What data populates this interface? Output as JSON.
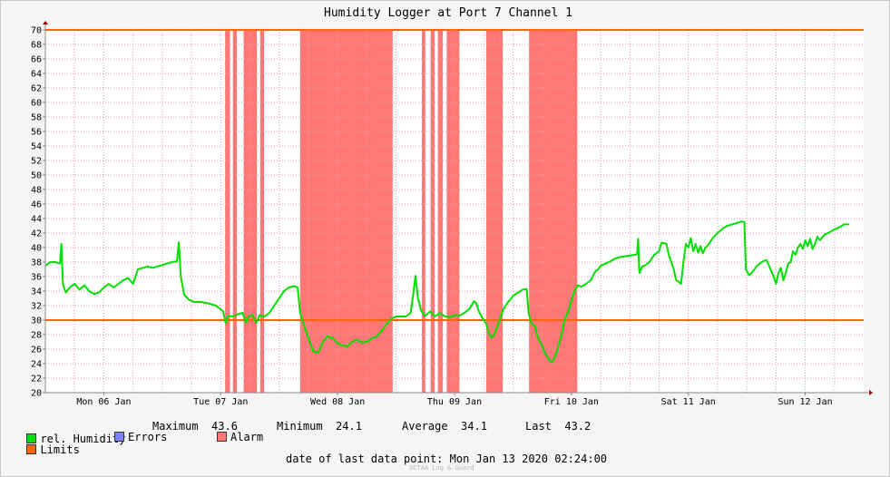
{
  "chart_data": {
    "type": "line",
    "title": "Humidity Logger at Port 7 Channel 1",
    "ylim": [
      20,
      70
    ],
    "yticks": [
      20,
      22,
      24,
      26,
      28,
      30,
      32,
      34,
      36,
      38,
      40,
      42,
      44,
      46,
      48,
      50,
      52,
      54,
      56,
      58,
      60,
      62,
      64,
      66,
      68,
      70
    ],
    "x_range_hours": [
      0,
      168
    ],
    "day_labels": [
      "Mon 06 Jan",
      "Tue 07 Jan",
      "Wed 08 Jan",
      "Thu 09 Jan",
      "Fri 10 Jan",
      "Sat 11 Jan",
      "Sun 12 Jan"
    ],
    "limits": {
      "upper": 70,
      "lower": 30
    },
    "alarm_periods_hours": [
      [
        36.9,
        37.9
      ],
      [
        38.5,
        39.3
      ],
      [
        40.7,
        43.4
      ],
      [
        44.1,
        44.9
      ],
      [
        52.3,
        71.3
      ],
      [
        77.3,
        78.0
      ],
      [
        79.1,
        79.9
      ],
      [
        80.6,
        81.6
      ],
      [
        82.4,
        85.0
      ],
      [
        90.5,
        93.9
      ],
      [
        99.3,
        109.2
      ]
    ],
    "series": [
      {
        "name": "rel. Humidity",
        "color": "#00e000",
        "points": [
          [
            0,
            37.5
          ],
          [
            1,
            38.0
          ],
          [
            2,
            38.0
          ],
          [
            3,
            37.8
          ],
          [
            3.3,
            40.5
          ],
          [
            3.6,
            35.0
          ],
          [
            4.2,
            33.8
          ],
          [
            5,
            34.5
          ],
          [
            6,
            35.0
          ],
          [
            7,
            34.2
          ],
          [
            8,
            34.8
          ],
          [
            9,
            34.0
          ],
          [
            10,
            33.6
          ],
          [
            11,
            33.8
          ],
          [
            12,
            34.5
          ],
          [
            13,
            35.0
          ],
          [
            14,
            34.5
          ],
          [
            15,
            35.0
          ],
          [
            16,
            35.5
          ],
          [
            17,
            35.8
          ],
          [
            18,
            35.0
          ],
          [
            19,
            37.0
          ],
          [
            20,
            37.2
          ],
          [
            21,
            37.4
          ],
          [
            22,
            37.2
          ],
          [
            23,
            37.4
          ],
          [
            24,
            37.6
          ],
          [
            25,
            37.8
          ],
          [
            26,
            38.0
          ],
          [
            27,
            38.1
          ],
          [
            27.4,
            40.7
          ],
          [
            27.8,
            36.0
          ],
          [
            28.5,
            33.5
          ],
          [
            29.5,
            32.8
          ],
          [
            30.5,
            32.5
          ],
          [
            32,
            32.5
          ],
          [
            33.5,
            32.3
          ],
          [
            35,
            32.0
          ],
          [
            36.5,
            31.2
          ],
          [
            37,
            29.6
          ],
          [
            37.5,
            30.6
          ],
          [
            38.5,
            30.5
          ],
          [
            39.5,
            30.8
          ],
          [
            40.5,
            31.0
          ],
          [
            41.2,
            29.6
          ],
          [
            41.8,
            30.6
          ],
          [
            42.5,
            30.7
          ],
          [
            43.3,
            29.6
          ],
          [
            44,
            30.7
          ],
          [
            45,
            30.5
          ],
          [
            46,
            31.0
          ],
          [
            47,
            32.0
          ],
          [
            48,
            33.0
          ],
          [
            49,
            34.0
          ],
          [
            50,
            34.5
          ],
          [
            51,
            34.7
          ],
          [
            51.8,
            34.5
          ],
          [
            52.3,
            31.0
          ],
          [
            53,
            29.5
          ],
          [
            54,
            27.5
          ],
          [
            55,
            25.7
          ],
          [
            56,
            25.5
          ],
          [
            57,
            27.0
          ],
          [
            58,
            27.8
          ],
          [
            59,
            27.5
          ],
          [
            60,
            26.8
          ],
          [
            61,
            26.5
          ],
          [
            62,
            26.4
          ],
          [
            63,
            27.0
          ],
          [
            64,
            27.3
          ],
          [
            65,
            26.9
          ],
          [
            66,
            27.0
          ],
          [
            67,
            27.5
          ],
          [
            68,
            27.7
          ],
          [
            69,
            28.5
          ],
          [
            70,
            29.4
          ],
          [
            71,
            30.2
          ],
          [
            72,
            30.5
          ],
          [
            73,
            30.5
          ],
          [
            74,
            30.5
          ],
          [
            75,
            31.0
          ],
          [
            75.6,
            34.0
          ],
          [
            76,
            36.1
          ],
          [
            76.5,
            33.0
          ],
          [
            77.2,
            31.2
          ],
          [
            78,
            30.6
          ],
          [
            79,
            31.2
          ],
          [
            80,
            30.5
          ],
          [
            81,
            31.0
          ],
          [
            82,
            30.5
          ],
          [
            83,
            30.4
          ],
          [
            84,
            30.7
          ],
          [
            85,
            30.6
          ],
          [
            86,
            31.0
          ],
          [
            87,
            31.5
          ],
          [
            88,
            32.6
          ],
          [
            88.5,
            32.3
          ],
          [
            89,
            31.2
          ],
          [
            89.8,
            30.2
          ],
          [
            90.5,
            29.5
          ],
          [
            91,
            28.3
          ],
          [
            91.5,
            27.6
          ],
          [
            92,
            27.8
          ],
          [
            92.5,
            28.6
          ],
          [
            93,
            29.5
          ],
          [
            93.5,
            30.5
          ],
          [
            94,
            31.5
          ],
          [
            95,
            32.5
          ],
          [
            96,
            33.3
          ],
          [
            97,
            33.8
          ],
          [
            98,
            34.2
          ],
          [
            98.8,
            34.3
          ],
          [
            99.2,
            31.0
          ],
          [
            99.8,
            29.5
          ],
          [
            100.5,
            29.2
          ],
          [
            101,
            27.8
          ],
          [
            101.5,
            27.0
          ],
          [
            102,
            26.5
          ],
          [
            102.5,
            25.5
          ],
          [
            103,
            25.0
          ],
          [
            103.5,
            24.4
          ],
          [
            104,
            24.2
          ],
          [
            104.5,
            24.8
          ],
          [
            105,
            25.7
          ],
          [
            105.5,
            26.8
          ],
          [
            106,
            28.0
          ],
          [
            106.5,
            29.8
          ],
          [
            107,
            30.7
          ],
          [
            107.5,
            31.5
          ],
          [
            108,
            32.8
          ],
          [
            108.7,
            34.1
          ],
          [
            109.3,
            34.8
          ],
          [
            110,
            34.6
          ],
          [
            111,
            35.0
          ],
          [
            112,
            35.5
          ],
          [
            112.5,
            36.2
          ],
          [
            113,
            36.8
          ],
          [
            113.5,
            37.0
          ],
          [
            114,
            37.5
          ],
          [
            115,
            37.8
          ],
          [
            116,
            38.1
          ],
          [
            117,
            38.5
          ],
          [
            118,
            38.7
          ],
          [
            119,
            38.8
          ],
          [
            120,
            38.9
          ],
          [
            121,
            39.0
          ],
          [
            121.5,
            39.1
          ],
          [
            121.7,
            41.2
          ],
          [
            121.9,
            37.0
          ],
          [
            122,
            36.5
          ],
          [
            122.5,
            37.4
          ],
          [
            123,
            37.5
          ],
          [
            124,
            38.0
          ],
          [
            125,
            39.0
          ],
          [
            126,
            39.5
          ],
          [
            126.5,
            40.7
          ],
          [
            127,
            40.6
          ],
          [
            127.5,
            40.5
          ],
          [
            128,
            39.0
          ],
          [
            129,
            37.0
          ],
          [
            129.5,
            35.5
          ],
          [
            130,
            35.3
          ],
          [
            130.5,
            35.0
          ],
          [
            131,
            38.0
          ],
          [
            131.5,
            40.5
          ],
          [
            132,
            40.0
          ],
          [
            132.5,
            41.3
          ],
          [
            133,
            39.5
          ],
          [
            133.5,
            40.5
          ],
          [
            134,
            39.3
          ],
          [
            134.5,
            40.2
          ],
          [
            135,
            39.2
          ],
          [
            135.5,
            40.0
          ],
          [
            136,
            40.3
          ],
          [
            137,
            41.3
          ],
          [
            138,
            42.0
          ],
          [
            139,
            42.6
          ],
          [
            140,
            43.0
          ],
          [
            141,
            43.2
          ],
          [
            142,
            43.4
          ],
          [
            143,
            43.6
          ],
          [
            143.5,
            43.5
          ],
          [
            143.8,
            37.0
          ],
          [
            144.5,
            36.2
          ],
          [
            145,
            36.5
          ],
          [
            146,
            37.4
          ],
          [
            147,
            38.0
          ],
          [
            148,
            38.3
          ],
          [
            148.5,
            37.6
          ],
          [
            149,
            36.8
          ],
          [
            149.5,
            36.0
          ],
          [
            150,
            35.0
          ],
          [
            150.5,
            36.5
          ],
          [
            151,
            37.2
          ],
          [
            151.5,
            35.5
          ],
          [
            152,
            36.5
          ],
          [
            152.5,
            37.8
          ],
          [
            153,
            38.0
          ],
          [
            153.5,
            39.5
          ],
          [
            154,
            39.0
          ],
          [
            154.5,
            40.0
          ],
          [
            155,
            40.5
          ],
          [
            155.5,
            39.8
          ],
          [
            156,
            41.0
          ],
          [
            156.5,
            40.2
          ],
          [
            157,
            41.2
          ],
          [
            157.5,
            39.8
          ],
          [
            158,
            40.5
          ],
          [
            158.5,
            41.5
          ],
          [
            159,
            41.0
          ],
          [
            160,
            41.8
          ],
          [
            161,
            42.1
          ],
          [
            162,
            42.5
          ],
          [
            163,
            42.8
          ],
          [
            164,
            43.2
          ],
          [
            165,
            43.2
          ]
        ]
      },
      {
        "name": "Limits",
        "color": "#ff6600"
      },
      {
        "name": "Errors",
        "color": "#7b84ff"
      },
      {
        "name": "Alarm",
        "color": "#ff7777"
      }
    ]
  },
  "stats": {
    "maximum_label": "Maximum",
    "maximum_value": "43.6",
    "minimum_label": "Minimum",
    "minimum_value": "24.1",
    "average_label": "Average",
    "average_value": "34.1",
    "last_label": "Last",
    "last_value": "43.2"
  },
  "footer": {
    "last_point_label": "date of last data point:",
    "last_point_value": "Mon Jan 13 2020 02:24:00",
    "watermark": "OCTAA Log & Guard"
  }
}
